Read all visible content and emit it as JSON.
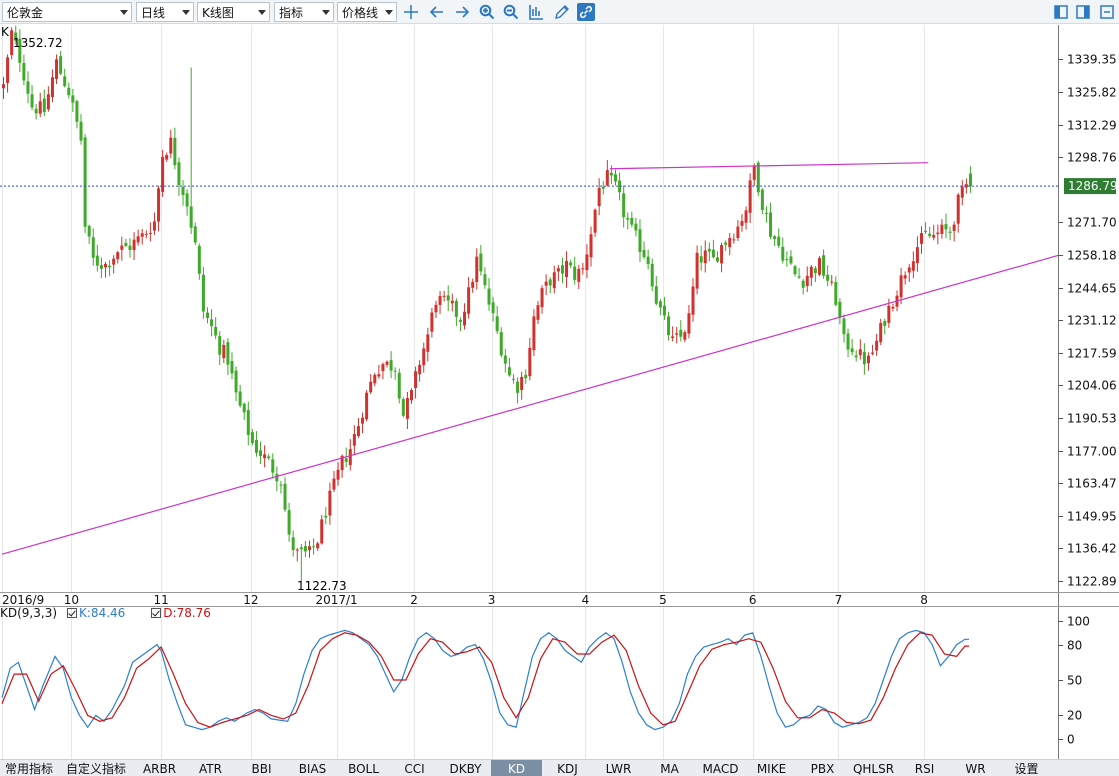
{
  "toolbar": {
    "symbol": "伦敦金",
    "period": "日线",
    "chart_type": "K线图",
    "indicator": "指标",
    "price_line": "价格线"
  },
  "main_label": "K",
  "price_extremes": {
    "high_label": "1352.72",
    "low_label": "1122.73"
  },
  "current_price": "1286.79",
  "indicator_panel": {
    "name": "KD(9,3,3)",
    "k_label": "K:84.46",
    "d_label": "D:78.76",
    "levels": [
      "100",
      "80",
      "50",
      "20",
      "0"
    ],
    "colors": {
      "k": "#2a7fd4",
      "d": "#cc1111"
    }
  },
  "bottom_tabs": [
    "常用指标",
    "自定义指标",
    "ARBR",
    "ATR",
    "BBI",
    "BIAS",
    "BOLL",
    "CCI",
    "DKBY",
    "KD",
    "KDJ",
    "LWR",
    "MA",
    "MACD",
    "MIKE",
    "PBX",
    "QHLSR",
    "RSI",
    "WR",
    "设置"
  ],
  "active_tab": "KD",
  "colors": {
    "up": "#d0332f",
    "down": "#3faa2a",
    "trendline": "#cc33cc",
    "accent": "#2e78c2"
  },
  "chart_data": {
    "type": "candlestick",
    "title": "",
    "y_ticks": [
      1339.35,
      1325.82,
      1312.29,
      1298.76,
      1286.79,
      1271.7,
      1258.18,
      1244.65,
      1231.12,
      1217.59,
      1204.06,
      1190.53,
      1177.0,
      1163.47,
      1149.95,
      1136.42,
      1122.89
    ],
    "ylim": [
      1122.89,
      1352.72
    ],
    "x_labels": [
      {
        "label": "2016/9",
        "idx": 0
      },
      {
        "label": "10",
        "idx": 17
      },
      {
        "label": "11",
        "idx": 39
      },
      {
        "label": "12",
        "idx": 61
      },
      {
        "label": "2017/1",
        "idx": 82
      },
      {
        "label": "2",
        "idx": 101
      },
      {
        "label": "3",
        "idx": 120
      },
      {
        "label": "4",
        "idx": 143
      },
      {
        "label": "5",
        "idx": 162
      },
      {
        "label": "6",
        "idx": 184
      },
      {
        "label": "7",
        "idx": 205
      },
      {
        "label": "8",
        "idx": 226
      }
    ],
    "price_anchors": [
      [
        0,
        1328
      ],
      [
        2,
        1350
      ],
      [
        4,
        1340
      ],
      [
        7,
        1320
      ],
      [
        10,
        1318
      ],
      [
        13,
        1338
      ],
      [
        16,
        1326
      ],
      [
        19,
        1306
      ],
      [
        20,
        1270
      ],
      [
        22,
        1256
      ],
      [
        25,
        1254
      ],
      [
        28,
        1260
      ],
      [
        31,
        1262
      ],
      [
        34,
        1266
      ],
      [
        37,
        1272
      ],
      [
        39,
        1300
      ],
      [
        41,
        1305
      ],
      [
        43,
        1290
      ],
      [
        45,
        1280
      ],
      [
        47,
        1262
      ],
      [
        49,
        1235
      ],
      [
        51,
        1228
      ],
      [
        53,
        1220
      ],
      [
        55,
        1215
      ],
      [
        57,
        1200
      ],
      [
        59,
        1190
      ],
      [
        61,
        1180
      ],
      [
        63,
        1176
      ],
      [
        65,
        1172
      ],
      [
        68,
        1165
      ],
      [
        70,
        1140
      ],
      [
        72,
        1134
      ],
      [
        75,
        1134
      ],
      [
        77,
        1140
      ],
      [
        79,
        1152
      ],
      [
        81,
        1162
      ],
      [
        83,
        1172
      ],
      [
        85,
        1178
      ],
      [
        87,
        1188
      ],
      [
        89,
        1200
      ],
      [
        91,
        1210
      ],
      [
        93,
        1213
      ],
      [
        96,
        1212
      ],
      [
        98,
        1192
      ],
      [
        100,
        1200
      ],
      [
        102,
        1214
      ],
      [
        104,
        1225
      ],
      [
        106,
        1240
      ],
      [
        108,
        1238
      ],
      [
        110,
        1236
      ],
      [
        112,
        1232
      ],
      [
        114,
        1242
      ],
      [
        116,
        1256
      ],
      [
        118,
        1244
      ],
      [
        120,
        1232
      ],
      [
        122,
        1220
      ],
      [
        124,
        1208
      ],
      [
        126,
        1204
      ],
      [
        128,
        1210
      ],
      [
        130,
        1232
      ],
      [
        132,
        1242
      ],
      [
        134,
        1248
      ],
      [
        136,
        1250
      ],
      [
        138,
        1254
      ],
      [
        140,
        1250
      ],
      [
        142,
        1252
      ],
      [
        144,
        1268
      ],
      [
        146,
        1286
      ],
      [
        148,
        1290
      ],
      [
        150,
        1286
      ],
      [
        152,
        1276
      ],
      [
        154,
        1268
      ],
      [
        156,
        1262
      ],
      [
        158,
        1256
      ],
      [
        160,
        1240
      ],
      [
        162,
        1230
      ],
      [
        164,
        1222
      ],
      [
        166,
        1224
      ],
      [
        168,
        1232
      ],
      [
        170,
        1256
      ],
      [
        172,
        1258
      ],
      [
        174,
        1256
      ],
      [
        176,
        1262
      ],
      [
        178,
        1266
      ],
      [
        180,
        1270
      ],
      [
        182,
        1278
      ],
      [
        184,
        1295
      ],
      [
        186,
        1280
      ],
      [
        188,
        1268
      ],
      [
        190,
        1262
      ],
      [
        192,
        1256
      ],
      [
        194,
        1250
      ],
      [
        196,
        1248
      ],
      [
        198,
        1252
      ],
      [
        200,
        1254
      ],
      [
        202,
        1248
      ],
      [
        204,
        1240
      ],
      [
        206,
        1222
      ],
      [
        208,
        1220
      ],
      [
        210,
        1216
      ],
      [
        212,
        1214
      ],
      [
        214,
        1222
      ],
      [
        216,
        1232
      ],
      [
        218,
        1240
      ],
      [
        220,
        1248
      ],
      [
        222,
        1256
      ],
      [
        224,
        1262
      ],
      [
        226,
        1266
      ],
      [
        228,
        1266
      ],
      [
        230,
        1268
      ],
      [
        232,
        1268
      ],
      [
        234,
        1280
      ],
      [
        236,
        1287
      ]
    ],
    "trendlines": [
      {
        "from": [
          0,
          1134
        ],
        "to": [
          266,
          1258
        ]
      },
      {
        "from": [
          149,
          1294
        ],
        "to": [
          227,
          1296.5
        ]
      }
    ],
    "kd": {
      "k_anchors": [
        [
          0,
          35
        ],
        [
          2,
          60
        ],
        [
          4,
          65
        ],
        [
          6,
          45
        ],
        [
          8,
          25
        ],
        [
          10,
          45
        ],
        [
          13,
          70
        ],
        [
          15,
          60
        ],
        [
          17,
          35
        ],
        [
          19,
          20
        ],
        [
          21,
          10
        ],
        [
          23,
          20
        ],
        [
          25,
          15
        ],
        [
          27,
          25
        ],
        [
          30,
          45
        ],
        [
          32,
          65
        ],
        [
          34,
          70
        ],
        [
          36,
          75
        ],
        [
          38,
          80
        ],
        [
          39,
          75
        ],
        [
          41,
          50
        ],
        [
          43,
          30
        ],
        [
          45,
          12
        ],
        [
          47,
          10
        ],
        [
          49,
          8
        ],
        [
          51,
          10
        ],
        [
          53,
          15
        ],
        [
          55,
          18
        ],
        [
          57,
          15
        ],
        [
          60,
          22
        ],
        [
          62,
          25
        ],
        [
          64,
          22
        ],
        [
          66,
          17
        ],
        [
          68,
          16
        ],
        [
          70,
          15
        ],
        [
          72,
          30
        ],
        [
          74,
          55
        ],
        [
          76,
          75
        ],
        [
          78,
          85
        ],
        [
          80,
          88
        ],
        [
          82,
          90
        ],
        [
          84,
          92
        ],
        [
          86,
          90
        ],
        [
          88,
          85
        ],
        [
          90,
          80
        ],
        [
          92,
          70
        ],
        [
          94,
          55
        ],
        [
          96,
          40
        ],
        [
          98,
          50
        ],
        [
          100,
          70
        ],
        [
          102,
          85
        ],
        [
          104,
          90
        ],
        [
          106,
          85
        ],
        [
          108,
          75
        ],
        [
          110,
          70
        ],
        [
          112,
          72
        ],
        [
          114,
          78
        ],
        [
          116,
          80
        ],
        [
          118,
          68
        ],
        [
          120,
          48
        ],
        [
          122,
          22
        ],
        [
          124,
          12
        ],
        [
          126,
          10
        ],
        [
          128,
          40
        ],
        [
          130,
          70
        ],
        [
          132,
          85
        ],
        [
          134,
          90
        ],
        [
          136,
          85
        ],
        [
          138,
          75
        ],
        [
          140,
          70
        ],
        [
          142,
          65
        ],
        [
          144,
          78
        ],
        [
          146,
          85
        ],
        [
          148,
          90
        ],
        [
          150,
          85
        ],
        [
          152,
          65
        ],
        [
          154,
          40
        ],
        [
          156,
          22
        ],
        [
          158,
          12
        ],
        [
          160,
          8
        ],
        [
          162,
          10
        ],
        [
          164,
          15
        ],
        [
          166,
          30
        ],
        [
          168,
          55
        ],
        [
          170,
          70
        ],
        [
          172,
          78
        ],
        [
          174,
          80
        ],
        [
          176,
          82
        ],
        [
          178,
          85
        ],
        [
          180,
          80
        ],
        [
          182,
          88
        ],
        [
          184,
          90
        ],
        [
          186,
          70
        ],
        [
          188,
          45
        ],
        [
          190,
          22
        ],
        [
          192,
          10
        ],
        [
          194,
          12
        ],
        [
          196,
          18
        ],
        [
          198,
          20
        ],
        [
          200,
          28
        ],
        [
          202,
          25
        ],
        [
          204,
          14
        ],
        [
          206,
          10
        ],
        [
          208,
          12
        ],
        [
          210,
          14
        ],
        [
          212,
          18
        ],
        [
          214,
          30
        ],
        [
          216,
          50
        ],
        [
          218,
          70
        ],
        [
          220,
          85
        ],
        [
          222,
          90
        ],
        [
          224,
          92
        ],
        [
          226,
          90
        ],
        [
          228,
          80
        ],
        [
          230,
          62
        ],
        [
          232,
          70
        ],
        [
          234,
          80
        ],
        [
          236,
          84.46
        ]
      ],
      "d_anchors": [
        [
          0,
          30
        ],
        [
          3,
          55
        ],
        [
          6,
          55
        ],
        [
          9,
          32
        ],
        [
          12,
          55
        ],
        [
          15,
          62
        ],
        [
          18,
          42
        ],
        [
          21,
          20
        ],
        [
          24,
          15
        ],
        [
          27,
          18
        ],
        [
          30,
          35
        ],
        [
          33,
          60
        ],
        [
          36,
          68
        ],
        [
          39,
          78
        ],
        [
          42,
          55
        ],
        [
          45,
          30
        ],
        [
          48,
          14
        ],
        [
          51,
          10
        ],
        [
          54,
          14
        ],
        [
          57,
          17
        ],
        [
          60,
          20
        ],
        [
          63,
          25
        ],
        [
          66,
          20
        ],
        [
          69,
          17
        ],
        [
          72,
          22
        ],
        [
          75,
          45
        ],
        [
          78,
          75
        ],
        [
          81,
          85
        ],
        [
          84,
          90
        ],
        [
          87,
          88
        ],
        [
          90,
          82
        ],
        [
          93,
          70
        ],
        [
          96,
          50
        ],
        [
          99,
          50
        ],
        [
          102,
          72
        ],
        [
          105,
          85
        ],
        [
          108,
          82
        ],
        [
          111,
          72
        ],
        [
          114,
          74
        ],
        [
          117,
          78
        ],
        [
          120,
          65
        ],
        [
          123,
          35
        ],
        [
          126,
          18
        ],
        [
          129,
          35
        ],
        [
          132,
          68
        ],
        [
          135,
          85
        ],
        [
          138,
          82
        ],
        [
          141,
          72
        ],
        [
          144,
          72
        ],
        [
          147,
          82
        ],
        [
          150,
          88
        ],
        [
          153,
          75
        ],
        [
          156,
          45
        ],
        [
          159,
          22
        ],
        [
          162,
          12
        ],
        [
          165,
          15
        ],
        [
          168,
          38
        ],
        [
          171,
          62
        ],
        [
          174,
          76
        ],
        [
          177,
          80
        ],
        [
          180,
          82
        ],
        [
          183,
          85
        ],
        [
          186,
          82
        ],
        [
          189,
          60
        ],
        [
          192,
          32
        ],
        [
          195,
          18
        ],
        [
          198,
          18
        ],
        [
          201,
          25
        ],
        [
          204,
          22
        ],
        [
          207,
          14
        ],
        [
          210,
          13
        ],
        [
          213,
          16
        ],
        [
          216,
          35
        ],
        [
          219,
          60
        ],
        [
          222,
          80
        ],
        [
          225,
          90
        ],
        [
          228,
          88
        ],
        [
          231,
          72
        ],
        [
          234,
          70
        ],
        [
          236,
          78.76
        ]
      ]
    }
  }
}
